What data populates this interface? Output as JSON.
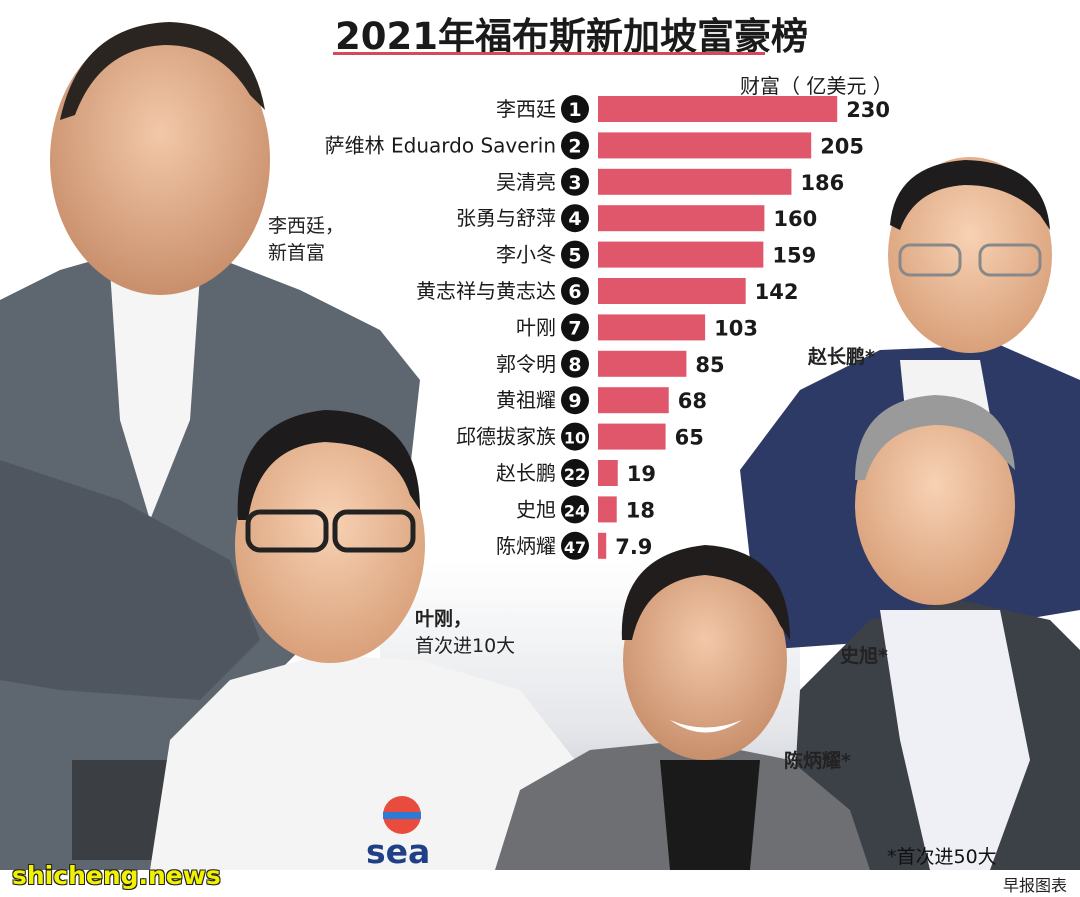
{
  "title": "2021年福布斯新加坡富豪榜",
  "unit_label": "财富（ 亿美元 ）",
  "captions": {
    "li_xiting": {
      "line1": "李西廷，",
      "line2": "新首富"
    },
    "forrest_li": {
      "line1": "叶刚，",
      "line2": "首次进10大"
    },
    "zhao_changpeng": "赵长鹏*",
    "shi_xu": "史旭*",
    "chen_bingyao": "陈炳耀*"
  },
  "footnote": "*首次进50大",
  "credit": "早报图表",
  "watermark": "shicheng.news",
  "logos": {
    "sea": "sea"
  },
  "colors": {
    "bar": "#e0566a",
    "rank_badge": "#111111",
    "title_rule": "#d6485a"
  },
  "chart_data": {
    "type": "bar",
    "orientation": "horizontal",
    "title": "2021年福布斯新加坡富豪榜",
    "unit": "财富（ 亿美元 ）",
    "categories": [
      "李西廷",
      "萨维林 Eduardo Saverin",
      "吴清亮",
      "张勇与舒萍",
      "李小冬",
      "黄志祥与黄志达",
      "叶刚",
      "郭令明",
      "黄祖耀",
      "邱德拔家族",
      "赵长鹏",
      "史旭",
      "陈炳耀"
    ],
    "ranks": [
      "1",
      "2",
      "3",
      "4",
      "5",
      "6",
      "7",
      "8",
      "9",
      "10",
      "22",
      "24",
      "47"
    ],
    "values": [
      230,
      205,
      186,
      160,
      159,
      142,
      103,
      85,
      68,
      65,
      19,
      18,
      7.9
    ],
    "value_labels": [
      "230",
      "205",
      "186",
      "160",
      "159",
      "142",
      "103",
      "85",
      "68",
      "65",
      "19",
      "18",
      "7.9"
    ],
    "legend": "none",
    "grid": false
  }
}
